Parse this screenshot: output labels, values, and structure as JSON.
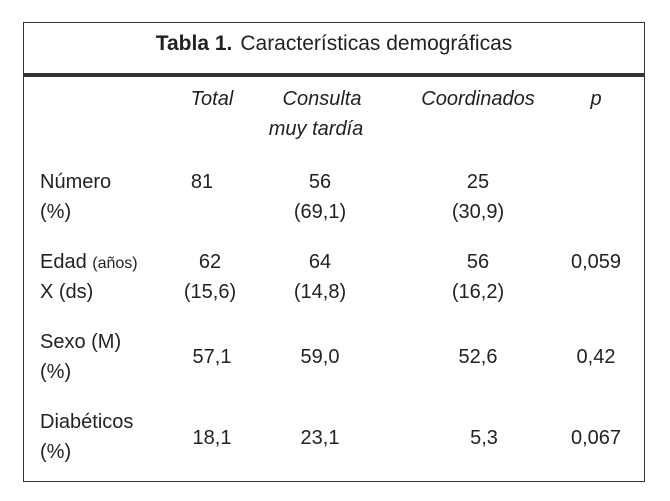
{
  "title": {
    "label": "Tabla 1.",
    "text": "Características demográficas"
  },
  "columns": [
    "Total",
    "Consulta muy tardía",
    "Coordinados",
    "p"
  ],
  "column_lines": {
    "consulta_1": "Consulta",
    "consulta_2": "muy tardía"
  },
  "rows": [
    {
      "label1": "Número",
      "label2": "(%)",
      "total": [
        "81",
        ""
      ],
      "consulta": [
        "56",
        "(69,1)"
      ],
      "coordinados": [
        "25",
        "(30,9)"
      ],
      "p": ""
    },
    {
      "label1": "Edad",
      "label1_small": "(años)",
      "label2": "X (ds)",
      "total": [
        "62",
        "(15,6)"
      ],
      "consulta": [
        "64",
        "(14,8)"
      ],
      "coordinados": [
        "56",
        "(16,2)"
      ],
      "p": "0,059"
    },
    {
      "label1": "Sexo (M)",
      "label2": "(%)",
      "total": [
        "57,1"
      ],
      "consulta": [
        "59,0"
      ],
      "coordinados": [
        "52,6"
      ],
      "p": "0,42"
    },
    {
      "label1": "Diabéticos",
      "label2": "(%)",
      "total": [
        "18,1"
      ],
      "consulta": [
        "23,1"
      ],
      "coordinados": [
        "5,3"
      ],
      "p": "0,067"
    }
  ]
}
